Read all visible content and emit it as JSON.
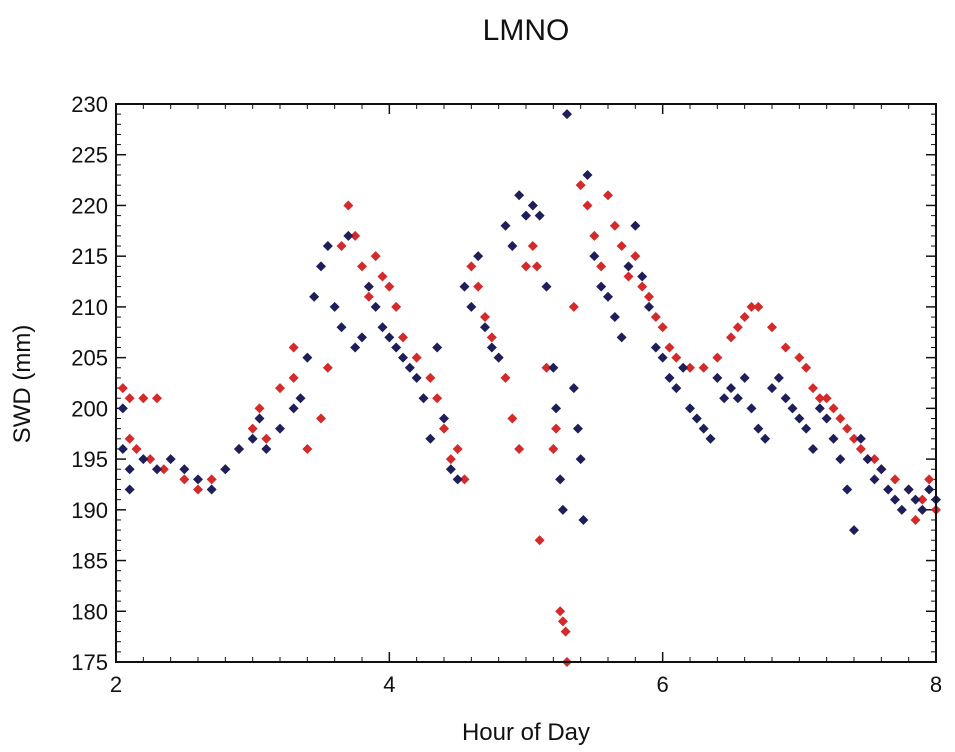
{
  "chart_data": {
    "type": "scatter",
    "title": "LMNO",
    "xlabel": "Hour of Day",
    "ylabel": "SWD (mm)",
    "xlim": [
      2,
      8
    ],
    "ylim": [
      175,
      230
    ],
    "xticks": [
      2,
      4,
      6,
      8
    ],
    "yticks": [
      175,
      180,
      185,
      190,
      195,
      200,
      205,
      210,
      215,
      220,
      225,
      230
    ],
    "grid": false,
    "marker": "diamond",
    "colors": {
      "red": "#d42a2a",
      "navy": "#1e1e5a"
    },
    "series": [
      {
        "color": "red",
        "points": [
          [
            2.05,
            202
          ],
          [
            2.1,
            201
          ],
          [
            2.2,
            201
          ],
          [
            2.3,
            201
          ],
          [
            2.1,
            197
          ],
          [
            2.15,
            196
          ],
          [
            2.25,
            195
          ],
          [
            2.35,
            194
          ],
          [
            2.5,
            193
          ],
          [
            2.6,
            192
          ],
          [
            2.7,
            193
          ],
          [
            2.8,
            194
          ],
          [
            2.9,
            196
          ],
          [
            3.0,
            198
          ],
          [
            3.05,
            200
          ],
          [
            3.1,
            197
          ],
          [
            3.2,
            202
          ],
          [
            3.3,
            203
          ],
          [
            3.3,
            206
          ],
          [
            3.4,
            196
          ],
          [
            3.5,
            199
          ],
          [
            3.55,
            204
          ],
          [
            3.65,
            216
          ],
          [
            3.7,
            220
          ],
          [
            3.75,
            217
          ],
          [
            3.8,
            214
          ],
          [
            3.85,
            211
          ],
          [
            3.9,
            215
          ],
          [
            3.95,
            213
          ],
          [
            4.0,
            212
          ],
          [
            4.05,
            210
          ],
          [
            4.1,
            207
          ],
          [
            4.2,
            205
          ],
          [
            4.3,
            203
          ],
          [
            4.35,
            201
          ],
          [
            4.4,
            198
          ],
          [
            4.45,
            195
          ],
          [
            4.5,
            196
          ],
          [
            4.55,
            193
          ],
          [
            4.6,
            214
          ],
          [
            4.65,
            212
          ],
          [
            4.7,
            209
          ],
          [
            4.75,
            207
          ],
          [
            4.8,
            205
          ],
          [
            4.85,
            203
          ],
          [
            4.9,
            199
          ],
          [
            4.95,
            196
          ],
          [
            5.0,
            214
          ],
          [
            5.05,
            216
          ],
          [
            5.08,
            214
          ],
          [
            5.1,
            187
          ],
          [
            5.15,
            204
          ],
          [
            5.2,
            196
          ],
          [
            5.22,
            198
          ],
          [
            5.25,
            180
          ],
          [
            5.27,
            179
          ],
          [
            5.29,
            178
          ],
          [
            5.3,
            175
          ],
          [
            5.35,
            210
          ],
          [
            5.4,
            222
          ],
          [
            5.45,
            220
          ],
          [
            5.5,
            217
          ],
          [
            5.55,
            214
          ],
          [
            5.6,
            221
          ],
          [
            5.65,
            218
          ],
          [
            5.7,
            216
          ],
          [
            5.75,
            213
          ],
          [
            5.8,
            215
          ],
          [
            5.85,
            212
          ],
          [
            5.9,
            211
          ],
          [
            5.95,
            209
          ],
          [
            6.0,
            208
          ],
          [
            6.05,
            206
          ],
          [
            6.1,
            205
          ],
          [
            6.2,
            204
          ],
          [
            6.3,
            204
          ],
          [
            6.4,
            205
          ],
          [
            6.5,
            207
          ],
          [
            6.55,
            208
          ],
          [
            6.6,
            209
          ],
          [
            6.65,
            210
          ],
          [
            6.7,
            210
          ],
          [
            6.8,
            208
          ],
          [
            6.9,
            206
          ],
          [
            7.0,
            205
          ],
          [
            7.05,
            204
          ],
          [
            7.1,
            202
          ],
          [
            7.15,
            201
          ],
          [
            7.2,
            201
          ],
          [
            7.25,
            200
          ],
          [
            7.3,
            199
          ],
          [
            7.35,
            198
          ],
          [
            7.4,
            197
          ],
          [
            7.45,
            196
          ],
          [
            7.5,
            195
          ],
          [
            7.55,
            195
          ],
          [
            7.6,
            194
          ],
          [
            7.7,
            193
          ],
          [
            7.8,
            192
          ],
          [
            7.85,
            189
          ],
          [
            7.9,
            191
          ],
          [
            7.95,
            193
          ],
          [
            8.0,
            190
          ]
        ]
      },
      {
        "color": "navy",
        "points": [
          [
            2.05,
            200
          ],
          [
            2.05,
            196
          ],
          [
            2.1,
            194
          ],
          [
            2.1,
            192
          ],
          [
            2.2,
            195
          ],
          [
            2.3,
            194
          ],
          [
            2.4,
            195
          ],
          [
            2.5,
            194
          ],
          [
            2.6,
            193
          ],
          [
            2.7,
            192
          ],
          [
            2.8,
            194
          ],
          [
            2.9,
            196
          ],
          [
            3.0,
            197
          ],
          [
            3.05,
            199
          ],
          [
            3.1,
            196
          ],
          [
            3.2,
            198
          ],
          [
            3.3,
            200
          ],
          [
            3.35,
            201
          ],
          [
            3.4,
            205
          ],
          [
            3.45,
            211
          ],
          [
            3.5,
            214
          ],
          [
            3.55,
            216
          ],
          [
            3.6,
            210
          ],
          [
            3.65,
            208
          ],
          [
            3.7,
            217
          ],
          [
            3.75,
            206
          ],
          [
            3.8,
            207
          ],
          [
            3.85,
            212
          ],
          [
            3.9,
            210
          ],
          [
            3.95,
            208
          ],
          [
            4.0,
            207
          ],
          [
            4.05,
            206
          ],
          [
            4.1,
            205
          ],
          [
            4.15,
            204
          ],
          [
            4.2,
            203
          ],
          [
            4.25,
            201
          ],
          [
            4.3,
            197
          ],
          [
            4.35,
            206
          ],
          [
            4.4,
            199
          ],
          [
            4.45,
            194
          ],
          [
            4.5,
            193
          ],
          [
            4.55,
            212
          ],
          [
            4.6,
            210
          ],
          [
            4.65,
            215
          ],
          [
            4.7,
            208
          ],
          [
            4.75,
            206
          ],
          [
            4.8,
            205
          ],
          [
            4.85,
            218
          ],
          [
            4.9,
            216
          ],
          [
            4.95,
            221
          ],
          [
            5.0,
            219
          ],
          [
            5.05,
            220
          ],
          [
            5.1,
            219
          ],
          [
            5.15,
            212
          ],
          [
            5.2,
            204
          ],
          [
            5.22,
            200
          ],
          [
            5.25,
            193
          ],
          [
            5.27,
            190
          ],
          [
            5.3,
            229
          ],
          [
            5.35,
            202
          ],
          [
            5.38,
            198
          ],
          [
            5.4,
            195
          ],
          [
            5.42,
            189
          ],
          [
            5.45,
            223
          ],
          [
            5.5,
            215
          ],
          [
            5.55,
            212
          ],
          [
            5.6,
            211
          ],
          [
            5.65,
            209
          ],
          [
            5.7,
            207
          ],
          [
            5.75,
            214
          ],
          [
            5.8,
            218
          ],
          [
            5.85,
            213
          ],
          [
            5.9,
            210
          ],
          [
            5.95,
            206
          ],
          [
            6.0,
            205
          ],
          [
            6.05,
            203
          ],
          [
            6.1,
            202
          ],
          [
            6.15,
            204
          ],
          [
            6.2,
            200
          ],
          [
            6.25,
            199
          ],
          [
            6.3,
            198
          ],
          [
            6.35,
            197
          ],
          [
            6.4,
            203
          ],
          [
            6.45,
            201
          ],
          [
            6.5,
            202
          ],
          [
            6.55,
            201
          ],
          [
            6.6,
            203
          ],
          [
            6.65,
            200
          ],
          [
            6.7,
            198
          ],
          [
            6.75,
            197
          ],
          [
            6.8,
            202
          ],
          [
            6.85,
            203
          ],
          [
            6.9,
            201
          ],
          [
            6.95,
            200
          ],
          [
            7.0,
            199
          ],
          [
            7.05,
            198
          ],
          [
            7.1,
            196
          ],
          [
            7.15,
            200
          ],
          [
            7.2,
            199
          ],
          [
            7.25,
            197
          ],
          [
            7.3,
            195
          ],
          [
            7.35,
            192
          ],
          [
            7.4,
            188
          ],
          [
            7.45,
            197
          ],
          [
            7.5,
            195
          ],
          [
            7.55,
            193
          ],
          [
            7.6,
            194
          ],
          [
            7.65,
            192
          ],
          [
            7.7,
            191
          ],
          [
            7.75,
            190
          ],
          [
            7.8,
            192
          ],
          [
            7.85,
            191
          ],
          [
            7.9,
            190
          ],
          [
            7.95,
            192
          ],
          [
            8.0,
            191
          ]
        ]
      }
    ]
  }
}
